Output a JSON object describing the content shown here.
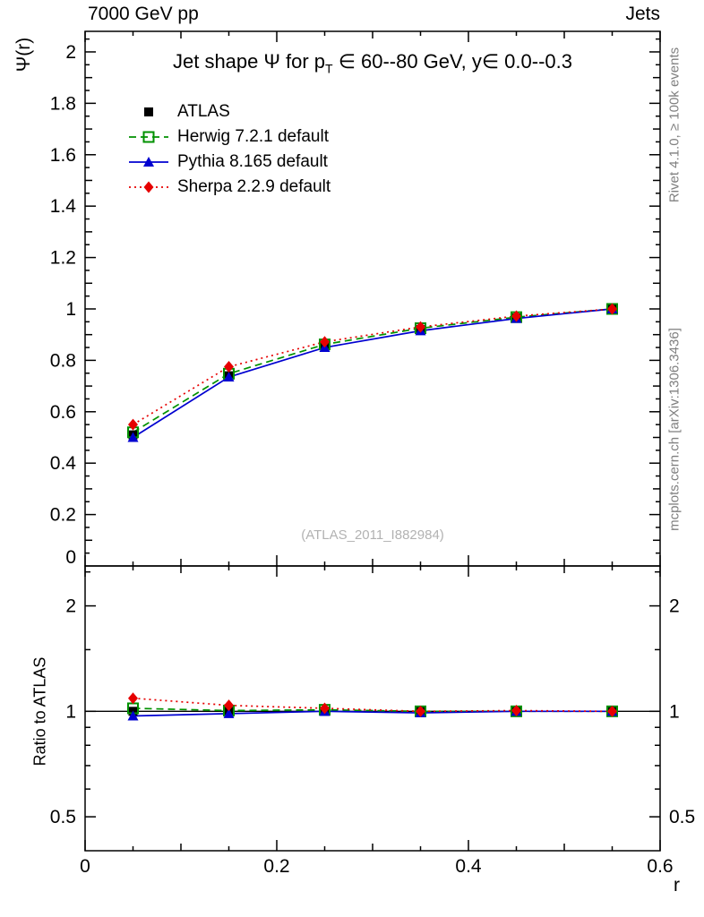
{
  "header": {
    "left": "7000 GeV pp",
    "right": "Jets"
  },
  "title_parts": {
    "pre": "Jet shape Ψ for p",
    "sub": "T",
    "post": " ∈ 60--80 GeV, y∈ 0.0--0.3"
  },
  "axes": {
    "xlabel": "r",
    "ylabel": "Ψ(r)",
    "ratio_ylabel": "Ratio to ATLAS"
  },
  "watermark": "(ATLAS_2011_I882984)",
  "side_notes": {
    "top_right": "Rivet 4.1.0, ≥ 100k events",
    "bottom_right": "mcplots.cern.ch [arXiv:1306.3436]"
  },
  "chart_data": {
    "type": "line",
    "title": "Jet shape Ψ for p_T ∈ 60--80 GeV, y∈ 0.0--0.3",
    "xlabel": "r",
    "ylabel": "Ψ(r)",
    "ratio_ylabel": "Ratio to ATLAS",
    "x": [
      0.05,
      0.15,
      0.25,
      0.35,
      0.45,
      0.55
    ],
    "xlim": [
      0,
      0.6
    ],
    "ylim": [
      0,
      2.08
    ],
    "ratio_ylim": [
      0.4,
      2.6
    ],
    "ratio_scale": "log",
    "x_ticks": [
      0,
      0.2,
      0.4,
      0.6
    ],
    "y_ticks": [
      0,
      0.2,
      0.4,
      0.6,
      0.8,
      1,
      1.2,
      1.4,
      1.6,
      1.8,
      2
    ],
    "ratio_ticks": [
      0.5,
      1,
      2
    ],
    "ratio_minor_ticks": [
      0.6,
      0.7,
      0.8,
      0.9,
      1.5,
      2.5
    ],
    "legend_position": "top-left",
    "grid": false,
    "series": [
      {
        "name": "ATLAS",
        "color": "#000000",
        "marker": "square-filled",
        "line": "none",
        "values": [
          0.51,
          0.74,
          0.855,
          0.92,
          0.965,
          1.0
        ],
        "ratio": [
          1.0,
          1.0,
          1.0,
          1.0,
          1.0,
          1.0
        ]
      },
      {
        "name": "Herwig 7.2.1 default",
        "color": "#009100",
        "marker": "square-open",
        "line": "dashed",
        "values": [
          0.52,
          0.748,
          0.862,
          0.925,
          0.968,
          1.0
        ],
        "ratio": [
          1.02,
          1.005,
          1.01,
          1.0,
          1.0,
          1.0
        ]
      },
      {
        "name": "Pythia 8.165 default",
        "color": "#0000d0",
        "marker": "triangle-filled",
        "line": "solid",
        "values": [
          0.5,
          0.735,
          0.85,
          0.915,
          0.963,
          1.0
        ],
        "ratio": [
          0.97,
          0.985,
          1.0,
          0.99,
          1.0,
          1.0
        ]
      },
      {
        "name": "Sherpa 2.2.9 default",
        "color": "#e60000",
        "marker": "diamond-filled",
        "line": "dotted",
        "values": [
          0.55,
          0.775,
          0.872,
          0.93,
          0.972,
          1.0
        ],
        "ratio": [
          1.09,
          1.04,
          1.02,
          1.0,
          1.005,
          1.0
        ]
      }
    ]
  }
}
